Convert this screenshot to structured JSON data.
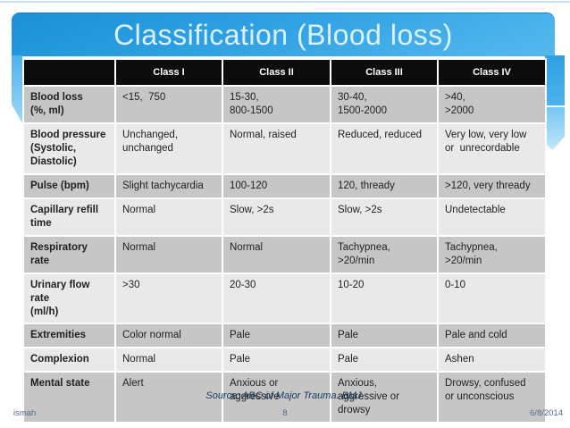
{
  "slide": {
    "title": "Classification (Blood loss)",
    "source_line": "Source: ABC of Major Trauma. BMJ.",
    "footer": {
      "author": "ismah",
      "page_number": "8",
      "date": "6/8/2014"
    },
    "colors": {
      "band_blue_top": "#1d8fd6",
      "band_blue_bottom": "#55b9ef",
      "ribbon_light_blue": "#9ed9f7",
      "header_black": "#0c0c0c",
      "row_dark_gray": "#c6c6c6",
      "row_light_gray": "#e9e9e9",
      "footer_blue": "#17375e"
    }
  },
  "table": {
    "header": [
      "",
      "Class I",
      "Class II",
      "Class III",
      "Class IV"
    ],
    "rows": [
      {
        "label": "Blood loss\n(%, ml)",
        "cells": [
          "<15,  750",
          "15-30,\n800-1500",
          "30-40,\n1500-2000",
          ">40,\n>2000"
        ]
      },
      {
        "label": "Blood pressure\n(Systolic,\nDiastolic)",
        "cells": [
          "Unchanged,\nunchanged",
          "Normal, raised",
          "Reduced, reduced",
          "Very low, very low\nor  unrecordable"
        ]
      },
      {
        "label": "Pulse (bpm)",
        "cells": [
          "Slight tachycardia",
          "100-120",
          "120, thready",
          ">120, very thready"
        ]
      },
      {
        "label": "Capillary refill\ntime",
        "cells": [
          "Normal",
          "Slow, >2s",
          "Slow, >2s",
          "Undetectable"
        ]
      },
      {
        "label": "Respiratory rate",
        "cells": [
          "Normal",
          "Normal",
          "Tachypnea,\n>20/min",
          "Tachypnea,\n>20/min"
        ]
      },
      {
        "label": "Urinary flow rate\n(ml/h)",
        "cells": [
          ">30",
          "20-30",
          "10-20",
          "0-10"
        ]
      },
      {
        "label": "Extremities",
        "cells": [
          "Color normal",
          "Pale",
          "Pale",
          "Pale and cold"
        ]
      },
      {
        "label": "Complexion",
        "cells": [
          "Normal",
          "Pale",
          "Pale",
          "Ashen"
        ]
      },
      {
        "label": "Mental state",
        "cells": [
          "Alert",
          "Anxious or\naggressive",
          "Anxious,\naggressive or\ndrowsy",
          "Drowsy, confused\nor unconscious"
        ]
      }
    ]
  }
}
